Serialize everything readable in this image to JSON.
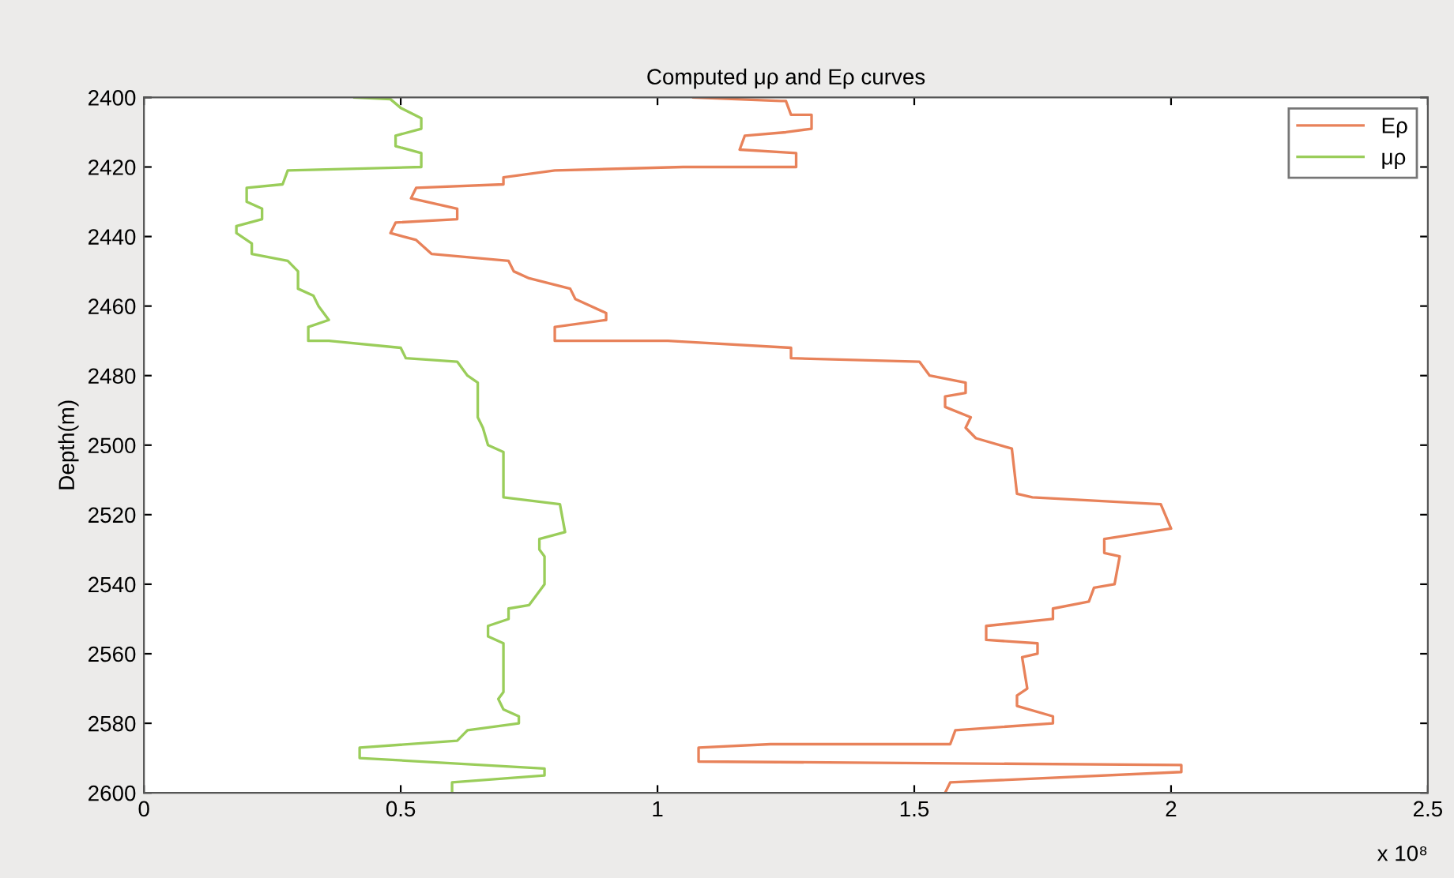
{
  "chart_data": {
    "type": "line",
    "title": "Computed μρ and Eρ curves",
    "ylabel": "Depth(m)",
    "annotations": [
      "x 10⁸"
    ],
    "xlim": [
      0,
      2.5
    ],
    "xticks": [
      0,
      0.5,
      1,
      1.5,
      2,
      2.5
    ],
    "ylim": [
      2600,
      2400
    ],
    "yticks": [
      2400,
      2420,
      2440,
      2460,
      2480,
      2500,
      2520,
      2540,
      2560,
      2580,
      2600
    ],
    "grid": false,
    "legend": "top right",
    "marker": "none",
    "line_style": "solid",
    "series": [
      {
        "name": "Eρ",
        "color": "#e8825a",
        "x": [
          1.07,
          1.24,
          1.25,
          1.26,
          1.3,
          1.3,
          1.25,
          1.17,
          1.16,
          1.27,
          1.27,
          1.05,
          0.8,
          0.7,
          0.7,
          0.53,
          0.52,
          0.61,
          0.61,
          0.49,
          0.48,
          0.53,
          0.56,
          0.71,
          0.72,
          0.75,
          0.83,
          0.84,
          0.9,
          0.9,
          0.8,
          0.8,
          1.02,
          1.26,
          1.26,
          1.51,
          1.53,
          1.6,
          1.6,
          1.56,
          1.56,
          1.61,
          1.6,
          1.62,
          1.69,
          1.7,
          1.73,
          1.98,
          2.0,
          1.87,
          1.87,
          1.9,
          1.89,
          1.85,
          1.84,
          1.77,
          1.77,
          1.64,
          1.64,
          1.74,
          1.74,
          1.71,
          1.72,
          1.7,
          1.7,
          1.77,
          1.77,
          1.58,
          1.57,
          1.22,
          1.08,
          1.08,
          2.02,
          2.02,
          1.57,
          1.56
        ],
        "values": [
          2400,
          2401,
          2401,
          2405,
          2405,
          2409,
          2410,
          2411,
          2415,
          2416,
          2420,
          2420,
          2421,
          2423,
          2425,
          2426,
          2429,
          2432,
          2435,
          2436,
          2439,
          2441,
          2445,
          2447,
          2450,
          2452,
          2455,
          2458,
          2462,
          2464,
          2466,
          2470,
          2470,
          2472,
          2475,
          2476,
          2480,
          2482,
          2485,
          2486,
          2489,
          2492,
          2495,
          2498,
          2501,
          2514,
          2515,
          2517,
          2524,
          2527,
          2531,
          2532,
          2540,
          2541,
          2545,
          2547,
          2550,
          2552,
          2556,
          2557,
          2560,
          2561,
          2570,
          2572,
          2575,
          2578,
          2580,
          2582,
          2586,
          2586,
          2587,
          2591,
          2592,
          2594,
          2597,
          2600
        ]
      },
      {
        "name": "μρ",
        "color": "#9acd5a",
        "x": [
          0.41,
          0.48,
          0.5,
          0.54,
          0.54,
          0.49,
          0.49,
          0.54,
          0.54,
          0.28,
          0.27,
          0.2,
          0.2,
          0.23,
          0.23,
          0.18,
          0.18,
          0.21,
          0.21,
          0.28,
          0.3,
          0.3,
          0.33,
          0.34,
          0.36,
          0.32,
          0.32,
          0.36,
          0.5,
          0.51,
          0.61,
          0.63,
          0.65,
          0.65,
          0.65,
          0.66,
          0.67,
          0.7,
          0.7,
          0.81,
          0.82,
          0.77,
          0.77,
          0.78,
          0.78,
          0.75,
          0.71,
          0.71,
          0.67,
          0.67,
          0.7,
          0.7,
          0.7,
          0.69,
          0.7,
          0.73,
          0.73,
          0.63,
          0.61,
          0.42,
          0.42,
          0.78,
          0.78,
          0.6,
          0.6
        ],
        "values": [
          2400,
          2400.5,
          2403,
          2406,
          2409,
          2411,
          2414,
          2416,
          2420,
          2421,
          2425,
          2426,
          2430,
          2432,
          2435,
          2437,
          2439,
          2442,
          2445,
          2447,
          2450,
          2455,
          2457,
          2460,
          2464,
          2466,
          2470,
          2470,
          2472,
          2475,
          2476,
          2480,
          2482,
          2488,
          2492,
          2495,
          2500,
          2502,
          2515,
          2517,
          2525,
          2527,
          2530,
          2532,
          2540,
          2546,
          2547,
          2550,
          2552,
          2555,
          2557,
          2564,
          2571,
          2573,
          2576,
          2578,
          2580,
          2582,
          2585,
          2587,
          2590,
          2593,
          2595,
          2597,
          2600
        ]
      }
    ]
  }
}
